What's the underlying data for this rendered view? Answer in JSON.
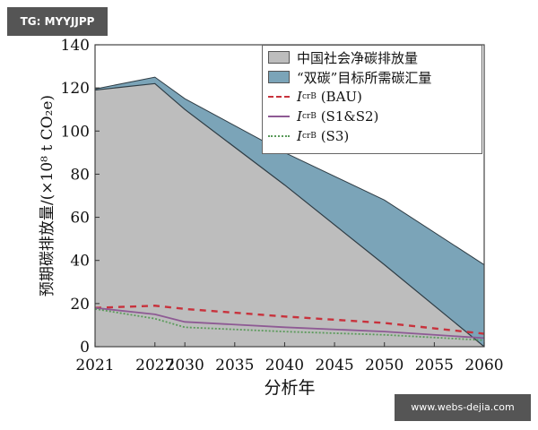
{
  "watermarks": {
    "top_left": "TG: MYYJJPP",
    "bottom_right": "www.webs-dejia.com"
  },
  "chart_data": {
    "type": "area",
    "title": "",
    "xlabel": "分析年",
    "ylabel": "预期碳排放量/(×10⁸ t CO₂e)",
    "ylim": [
      0,
      140
    ],
    "xlim": [
      2021,
      2060
    ],
    "x_ticks": [
      "2021",
      "2027",
      "2030",
      "2035",
      "2040",
      "2045",
      "2050",
      "2055",
      "2060"
    ],
    "y_ticks": [
      "0",
      "20",
      "40",
      "60",
      "80",
      "100",
      "120",
      "140"
    ],
    "grid": false,
    "legend_position": "upper right",
    "x": [
      2021,
      2027,
      2030,
      2040,
      2050,
      2060
    ],
    "series": [
      {
        "name": "中国社会净碳排放量",
        "style": "area",
        "color": "#bdbdbd",
        "values": [
          119,
          122,
          110,
          75,
          38,
          0
        ]
      },
      {
        "name": "“双碳”目标所需碳汇量",
        "style": "area-top",
        "color": "#7ba4b8",
        "values": [
          119.5,
          125,
          115,
          90,
          68,
          38
        ]
      },
      {
        "name": "IcrB (BAU)",
        "style": "dashed",
        "color": "#c8323c",
        "values": [
          18,
          19,
          17.5,
          14,
          11,
          6
        ]
      },
      {
        "name": "IcrB (S1&S2)",
        "style": "solid",
        "color": "#8e5a94",
        "values": [
          18,
          15,
          11.5,
          9,
          7,
          4
        ]
      },
      {
        "name": "IcrB (S3)",
        "style": "dotted",
        "color": "#5a9a5a",
        "values": [
          17.5,
          13,
          9,
          7,
          5.5,
          3
        ]
      }
    ]
  },
  "legend": {
    "items": [
      {
        "label": "中国社会净碳排放量"
      },
      {
        "label": "“双碳”目标所需碳汇量"
      },
      {
        "symbol": "I",
        "sub": "crB",
        "label": "(BAU)"
      },
      {
        "symbol": "I",
        "sub": "crB",
        "label": "(S1&S2)"
      },
      {
        "symbol": "I",
        "sub": "crB",
        "label": "(S3)"
      }
    ]
  }
}
